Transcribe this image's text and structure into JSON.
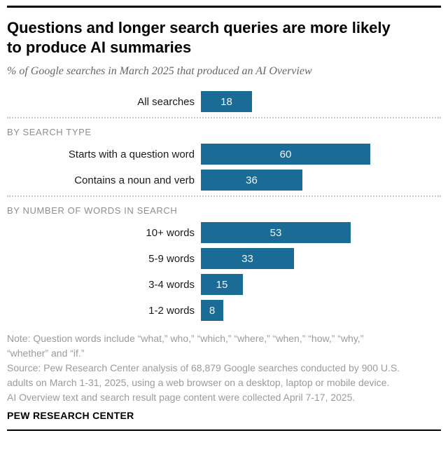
{
  "header": {
    "title_lines": [
      "Questions and longer search queries are more likely",
      "to produce AI summaries"
    ],
    "subtitle": "% of Google searches in March 2025 that produced an AI Overview"
  },
  "chart_data": {
    "type": "bar",
    "orientation": "horizontal",
    "title": "Questions and longer search queries are more likely to produce AI summaries",
    "subtitle": "% of Google searches in March 2025 that produced an AI Overview",
    "unit": "% of searches producing an AI Overview",
    "xlim": [
      0,
      62
    ],
    "bar_color": "#1a6b96",
    "value_label_position": "inside-center",
    "grid": false,
    "legend": false,
    "sections": [
      {
        "header": "",
        "rows": [
          {
            "label": "All searches",
            "value": 18
          }
        ]
      },
      {
        "header": "BY SEARCH TYPE",
        "rows": [
          {
            "label": "Starts with a question word",
            "value": 60
          },
          {
            "label": "Contains a noun and verb",
            "value": 36
          }
        ]
      },
      {
        "header": "BY NUMBER OF WORDS IN SEARCH",
        "rows": [
          {
            "label": "10+ words",
            "value": 53
          },
          {
            "label": "5-9 words",
            "value": 33
          },
          {
            "label": "3-4 words",
            "value": 15
          },
          {
            "label": "1-2 words",
            "value": 8
          }
        ]
      }
    ]
  },
  "footer": {
    "note_lines": [
      "Note: Question words include “what,” who,” “which,” “where,” “when,” “how,” “why,”",
      "“whether” and “if.”"
    ],
    "source_lines": [
      "Source: Pew Research Center analysis of 68,879 Google searches conducted by 900 U.S.",
      "adults on March 1-31, 2025, using a web browser on a desktop, laptop or mobile device.",
      "AI Overview text and search result page content were collected April 7-17, 2025."
    ],
    "brand": "PEW RESEARCH CENTER"
  }
}
